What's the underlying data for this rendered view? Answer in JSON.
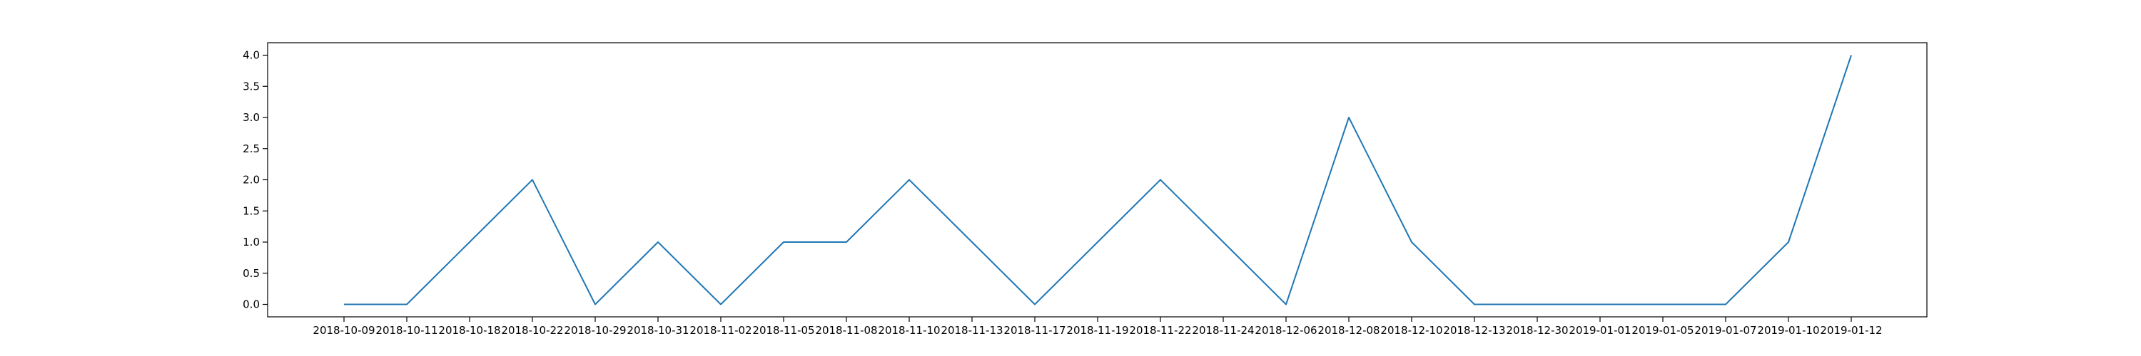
{
  "chart_data": {
    "type": "line",
    "title": "",
    "xlabel": "",
    "ylabel": "",
    "categories": [
      "2018-10-09",
      "2018-10-11",
      "2018-10-18",
      "2018-10-22",
      "2018-10-29",
      "2018-10-31",
      "2018-11-02",
      "2018-11-05",
      "2018-11-08",
      "2018-11-10",
      "2018-11-13",
      "2018-11-17",
      "2018-11-19",
      "2018-11-22",
      "2018-11-24",
      "2018-12-06",
      "2018-12-08",
      "2018-12-10",
      "2018-12-13",
      "2018-12-30",
      "2019-01-01",
      "2019-01-05",
      "2019-01-07",
      "2019-01-10",
      "2019-01-12"
    ],
    "series": [
      {
        "values": [
          0,
          0,
          1,
          2,
          0,
          1,
          0,
          1,
          1,
          2,
          1,
          0,
          1,
          2,
          1,
          0,
          3,
          1,
          0,
          0,
          0,
          0,
          0,
          1,
          4
        ]
      }
    ],
    "y_ticks": [
      "0.0",
      "0.5",
      "1.0",
      "1.5",
      "2.0",
      "2.5",
      "3.0",
      "3.5",
      "4.0"
    ],
    "ylim": [
      -0.2,
      4.2
    ],
    "grid": false,
    "legend": "none",
    "line_color": "#1f77b4"
  }
}
